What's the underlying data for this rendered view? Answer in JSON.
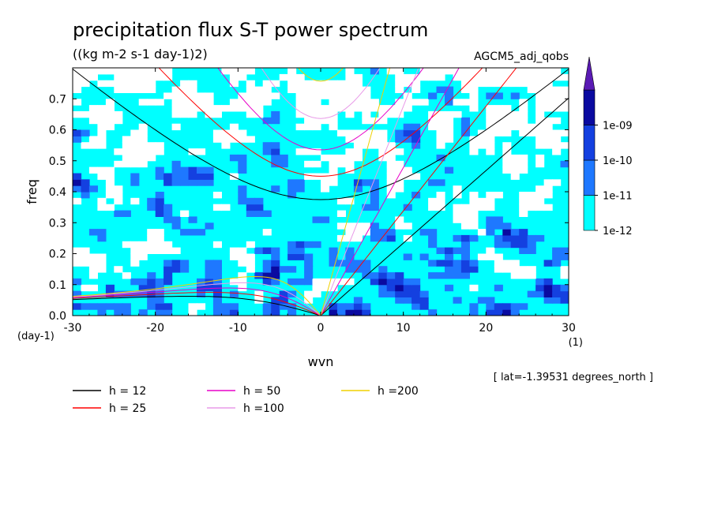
{
  "chart_data": {
    "type": "heatmap",
    "title": "precipitation flux S-T power spectrum",
    "subtitle": "((kg m-2 s-1 day-1)2)",
    "run_label": "AGCM5_adj_qobs",
    "xlabel": "wvn",
    "ylabel": "freq",
    "x_unit": "(1)",
    "y_unit": "(day-1)",
    "xlim": [
      -30,
      30
    ],
    "ylim": [
      0,
      0.8
    ],
    "x_ticks": [
      "-30",
      "-20",
      "-10",
      "0",
      "10",
      "20",
      "30"
    ],
    "y_ticks": [
      "0.0",
      "0.1",
      "0.2",
      "0.3",
      "0.4",
      "0.5",
      "0.6",
      "0.7"
    ],
    "latitude_note": "[ lat=-1.39531 degrees_north ]",
    "colorbar": {
      "levels": [
        "1e-12",
        "1e-11",
        "1e-10",
        "1e-09"
      ],
      "colors": [
        "#00ffff",
        "#1e78ff",
        "#1440e0",
        "#0a0aa0",
        "#5a1ab4"
      ]
    },
    "dispersion_curves": [
      {
        "label": "h = 12",
        "h": 12,
        "color": "#000000"
      },
      {
        "label": "h = 25",
        "h": 25,
        "color": "#ff0000"
      },
      {
        "label": "h = 50",
        "h": 50,
        "color": "#e800c8"
      },
      {
        "label": "h =100",
        "h": 100,
        "color": "#e89ae8"
      },
      {
        "label": "h =200",
        "h": 200,
        "color": "#f0d000"
      }
    ]
  }
}
